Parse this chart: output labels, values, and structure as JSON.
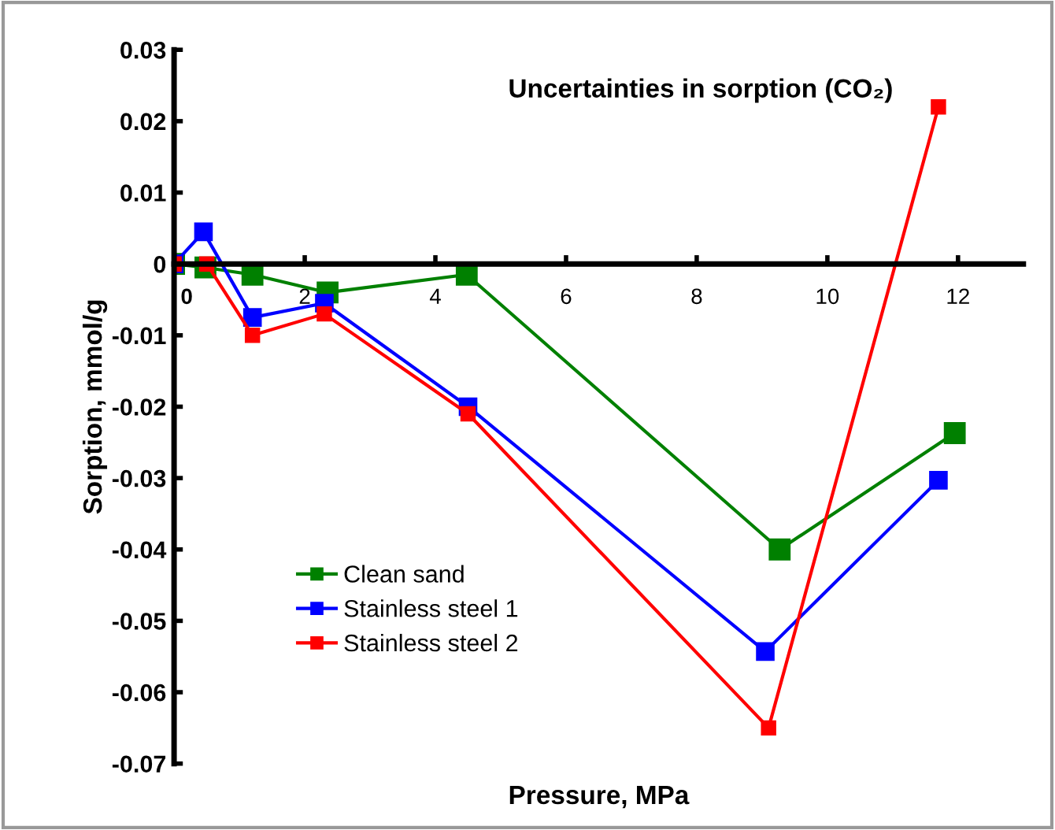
{
  "chart_data": {
    "type": "line",
    "title": "Uncertainties in sorption (CO₂)",
    "xlabel": "Pressure, MPa",
    "ylabel": "Sorption, mmol/g",
    "series": [
      {
        "name": "Clean sand",
        "color": "#008000",
        "x": [
          0,
          0.48,
          1.2,
          2.35,
          4.48,
          9.27,
          11.95
        ],
        "values": [
          0,
          -0.0005,
          -0.0015,
          -0.004,
          -0.0015,
          -0.04,
          -0.0237
        ]
      },
      {
        "name": "Stainless steel 1",
        "color": "#0000ff",
        "x": [
          0,
          0.45,
          1.2,
          2.3,
          4.5,
          9.05,
          11.7
        ],
        "values": [
          0,
          0.0045,
          -0.0075,
          -0.0055,
          -0.02,
          -0.0543,
          -0.0303
        ]
      },
      {
        "name": "Stainless steel 2",
        "color": "#ff0000",
        "x": [
          0,
          0.5,
          1.2,
          2.3,
          4.5,
          9.1,
          11.7
        ],
        "values": [
          0,
          0,
          -0.01,
          -0.007,
          -0.021,
          -0.065,
          0.022
        ]
      }
    ],
    "xlim": [
      0,
      13
    ],
    "xticks": [
      0,
      2,
      4,
      6,
      8,
      10,
      12
    ],
    "ylim": [
      -0.07,
      0.03
    ],
    "yticks": [
      -0.07,
      -0.06,
      -0.05,
      -0.04,
      -0.03,
      -0.02,
      -0.01,
      0,
      0.01,
      0.02,
      0.03
    ],
    "grid": false,
    "legend": "bottom left",
    "marker": "square",
    "line_style": "solid"
  }
}
